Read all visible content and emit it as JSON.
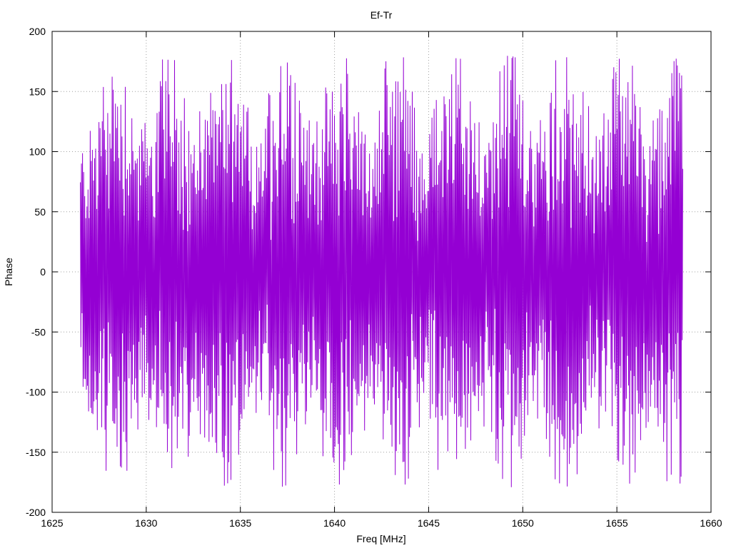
{
  "chart_data": {
    "type": "line",
    "title": "Ef-Tr",
    "xlabel": "Freq [MHz]",
    "ylabel": "Phase",
    "xlim": [
      1625,
      1660
    ],
    "ylim": [
      -200,
      200
    ],
    "xticks": [
      1625,
      1630,
      1635,
      1640,
      1645,
      1650,
      1655,
      1660
    ],
    "yticks": [
      -200,
      -150,
      -100,
      -50,
      0,
      50,
      100,
      150,
      200
    ],
    "grid": true,
    "line_color": "#9400d3",
    "x_start": 1626.5,
    "x_end": 1658.5,
    "phase_turn_centers": [
      1628.4,
      1631.3,
      1634.2,
      1637.4,
      1640.3,
      1643.3,
      1646.3,
      1649.2,
      1652.3,
      1655.4,
      1658.4
    ],
    "phase_range": [
      -180,
      180
    ]
  }
}
